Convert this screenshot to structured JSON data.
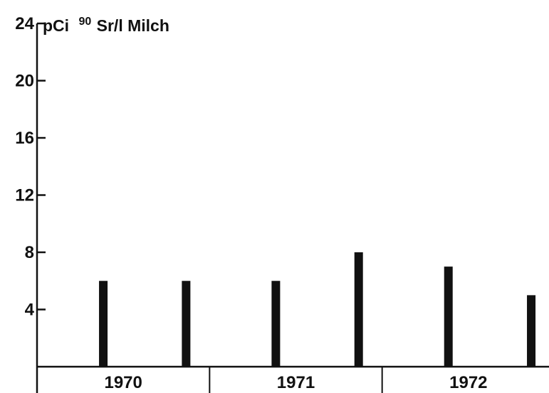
{
  "chart_data": {
    "type": "bar",
    "title": "",
    "ylabel": {
      "prefix": "pCi",
      "superscript": "90",
      "suffix": "Sr/l Milch"
    },
    "xlabel": "",
    "ylim": [
      0,
      24
    ],
    "yticks": [
      4,
      8,
      12,
      16,
      20,
      24
    ],
    "ytick_labels": [
      "4",
      "8",
      "12",
      "16",
      "20",
      "24"
    ],
    "groups": [
      "1970",
      "1971",
      "1972"
    ],
    "bars_per_group": 2,
    "values": [
      6,
      6,
      6,
      8,
      7,
      5
    ],
    "grid": false,
    "legend": "none"
  },
  "colors": {
    "ink": "#111111",
    "background": "#ffffff"
  }
}
